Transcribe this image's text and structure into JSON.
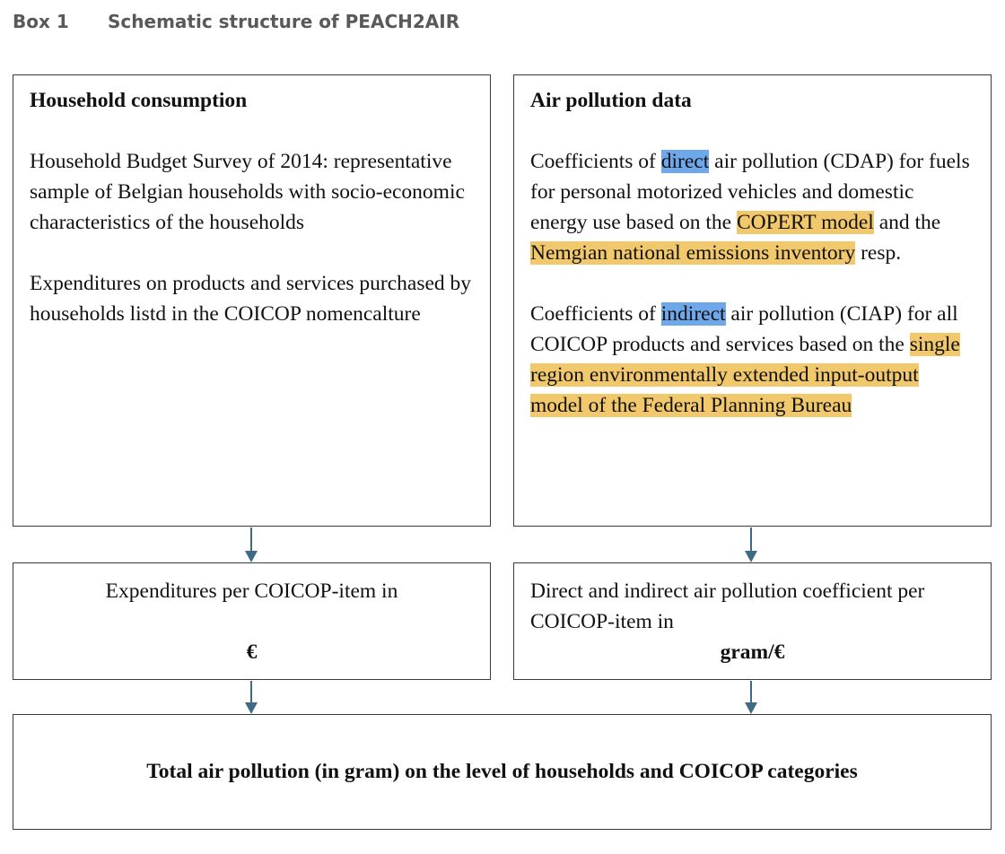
{
  "caption": {
    "number": "Box 1",
    "title": "Schematic structure of PEACH2AIR"
  },
  "household": {
    "title": "Household consumption",
    "para1": "Household Budget Survey of 2014: representative sample of Belgian households with socio-economic characteristics of the households",
    "para2": "Expenditures on products and services purchased by households listd in the COICOP nomencalture"
  },
  "air": {
    "title": "Air pollution data",
    "p1_a": "Coefficients of ",
    "p1_direct": "direct",
    "p1_b": " air pollution (CDAP) for fuels for personal motorized vehicles and domestic energy use based on the ",
    "p1_copert": "COPERT model",
    "p1_c": " and the ",
    "p1_nemgian": "Nemgian national emissions inventory",
    "p1_d": " resp.",
    "p2_a": "Coefficients of ",
    "p2_indirect": "indirect",
    "p2_b": " air pollution (CIAP) for all COICOP products and services based on the ",
    "p2_model": "single region environmentally extended input-output model of the Federal Planning Bureau"
  },
  "expenditure": {
    "text": "Expenditures per COICOP-item in",
    "unit": "€"
  },
  "coefficient": {
    "text": "Direct and indirect air pollution coefficient per COICOP-item in",
    "unit": "gram/€"
  },
  "total": {
    "text": "Total air pollution (in gram) on the level of households and COICOP categories"
  },
  "colors": {
    "highlight_blue": "#6fa8ea",
    "highlight_yellow": "#f1c86b",
    "arrow": "#3f6a85"
  }
}
